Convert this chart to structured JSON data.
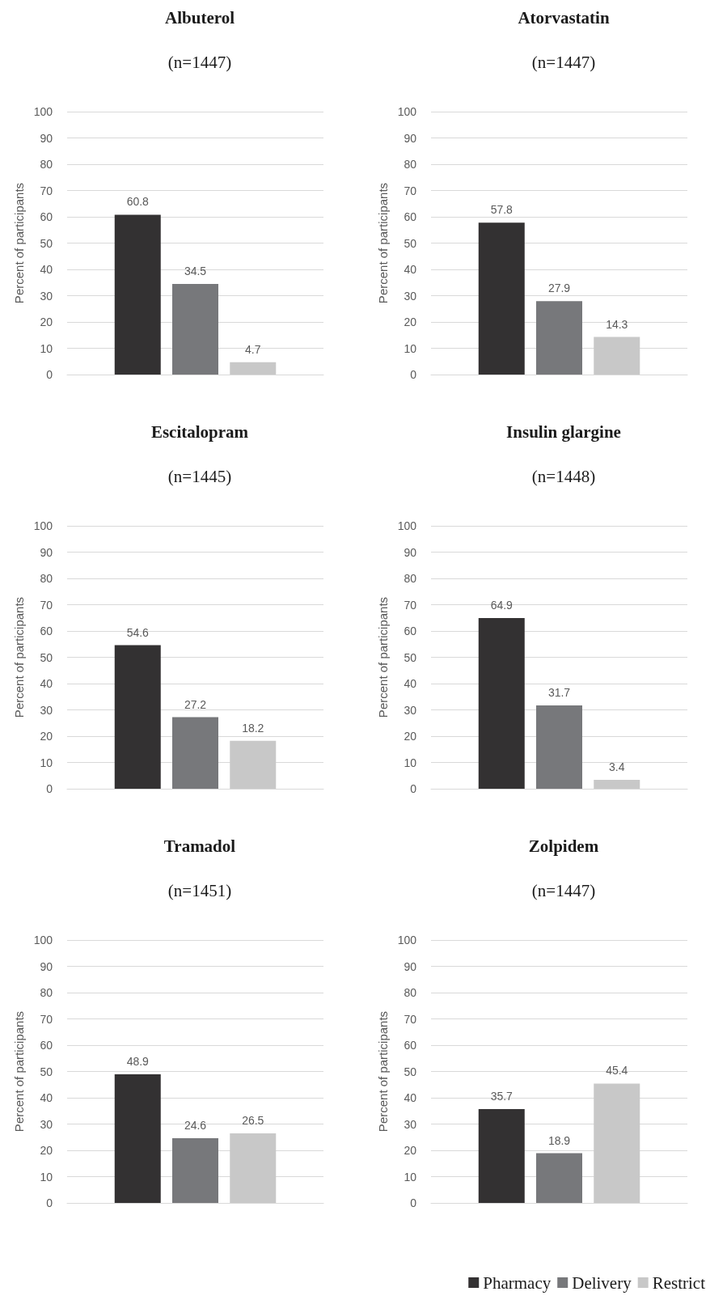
{
  "chart_data": [
    {
      "type": "bar",
      "title": "Albuterol",
      "subtitle": "(n=1447)",
      "ylabel": "Percent of participants",
      "categories": [
        null
      ],
      "series": [
        {
          "color": "#333132",
          "values": [
            60.8
          ]
        },
        {
          "color": "#77787b",
          "values": [
            34.5
          ]
        },
        {
          "color": "#c8c8c8",
          "values": [
            4.7
          ]
        }
      ],
      "ylim": [
        0,
        100
      ],
      "yticks": [
        0,
        10,
        20,
        30,
        40,
        50,
        60,
        70,
        80,
        90,
        100
      ],
      "grid": "y",
      "data_labels": true,
      "legend": false
    },
    {
      "type": "bar",
      "title": "Atorvastatin",
      "subtitle": "(n=1447)",
      "ylabel": "Percent of participants",
      "categories": [
        null
      ],
      "series": [
        {
          "color": "#333132",
          "values": [
            57.8
          ]
        },
        {
          "color": "#77787b",
          "values": [
            27.9
          ]
        },
        {
          "color": "#c8c8c8",
          "values": [
            14.3
          ]
        }
      ],
      "ylim": [
        0,
        100
      ],
      "yticks": [
        0,
        10,
        20,
        30,
        40,
        50,
        60,
        70,
        80,
        90,
        100
      ],
      "grid": "y",
      "data_labels": true,
      "legend": false
    },
    {
      "type": "bar",
      "title": "Escitalopram",
      "subtitle": "(n=1445)",
      "ylabel": "Percent of participants",
      "categories": [
        null
      ],
      "series": [
        {
          "color": "#333132",
          "values": [
            54.6
          ]
        },
        {
          "color": "#77787b",
          "values": [
            27.2
          ]
        },
        {
          "color": "#c8c8c8",
          "values": [
            18.2
          ]
        }
      ],
      "ylim": [
        0,
        100
      ],
      "yticks": [
        0,
        10,
        20,
        30,
        40,
        50,
        60,
        70,
        80,
        90,
        100
      ],
      "grid": "y",
      "data_labels": true,
      "legend": false
    },
    {
      "type": "bar",
      "title": "Insulin glargine",
      "subtitle": "(n=1448)",
      "ylabel": "Percent of participants",
      "categories": [
        null
      ],
      "series": [
        {
          "color": "#333132",
          "values": [
            64.9
          ]
        },
        {
          "color": "#77787b",
          "values": [
            31.7
          ]
        },
        {
          "color": "#c8c8c8",
          "values": [
            3.4
          ]
        }
      ],
      "ylim": [
        0,
        100
      ],
      "yticks": [
        0,
        10,
        20,
        30,
        40,
        50,
        60,
        70,
        80,
        90,
        100
      ],
      "grid": "y",
      "data_labels": true,
      "legend": false
    },
    {
      "type": "bar",
      "title": "Tramadol",
      "subtitle": "(n=1451)",
      "ylabel": "Percent of participants",
      "categories": [
        null
      ],
      "series": [
        {
          "color": "#333132",
          "values": [
            48.9
          ]
        },
        {
          "color": "#77787b",
          "values": [
            24.6
          ]
        },
        {
          "color": "#c8c8c8",
          "values": [
            26.5
          ]
        }
      ],
      "ylim": [
        0,
        100
      ],
      "yticks": [
        0,
        10,
        20,
        30,
        40,
        50,
        60,
        70,
        80,
        90,
        100
      ],
      "grid": "y",
      "data_labels": true,
      "legend": false
    },
    {
      "type": "bar",
      "title": "Zolpidem",
      "subtitle": "(n=1447)",
      "ylabel": "Percent of participants",
      "categories": [
        null
      ],
      "series": [
        {
          "name": "Pharmacy",
          "color": "#333132",
          "values": [
            35.7
          ]
        },
        {
          "name": "Delivery",
          "color": "#77787b",
          "values": [
            18.9
          ]
        },
        {
          "name": "Restrict",
          "color": "#c8c8c8",
          "values": [
            45.4
          ]
        }
      ],
      "ylim": [
        0,
        100
      ],
      "yticks": [
        0,
        10,
        20,
        30,
        40,
        50,
        60,
        70,
        80,
        90,
        100
      ],
      "grid": "y",
      "data_labels": true,
      "legend": "bottom right"
    }
  ]
}
